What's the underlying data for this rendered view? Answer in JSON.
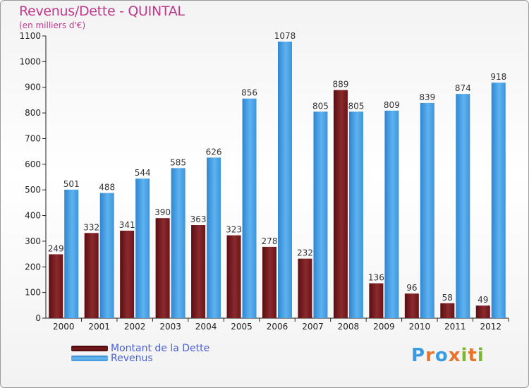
{
  "title": "Revenus/Dette - QUINTAL",
  "subtitle": "(en milliers d'€)",
  "brand": {
    "text": "Proxiti",
    "letters": [
      {
        "ch": "P",
        "color": "#3a9be0"
      },
      {
        "ch": "r",
        "color": "#e8732a"
      },
      {
        "ch": "o",
        "color": "#3a9be0"
      },
      {
        "ch": "x",
        "color": "#e8732a"
      },
      {
        "ch": "i",
        "color": "#7ab92f"
      },
      {
        "ch": "t",
        "color": "#e8732a"
      },
      {
        "ch": "i",
        "color": "#7ab92f"
      }
    ]
  },
  "chart_data": {
    "type": "bar",
    "title": "Revenus/Dette - QUINTAL",
    "subtitle": "(en milliers d'€)",
    "categories": [
      "2000",
      "2001",
      "2002",
      "2003",
      "2004",
      "2005",
      "2006",
      "2007",
      "2008",
      "2009",
      "2010",
      "2011",
      "2012"
    ],
    "series": [
      {
        "name": "Montant de la Dette",
        "color": "#7a1a1e",
        "values": [
          249,
          332,
          341,
          390,
          363,
          323,
          278,
          232,
          889,
          136,
          96,
          58,
          49
        ]
      },
      {
        "name": "Revenus",
        "color": "#4aa3e8",
        "values": [
          501,
          488,
          544,
          585,
          626,
          856,
          1078,
          805,
          805,
          809,
          839,
          874,
          918
        ]
      }
    ],
    "ylim": [
      0,
      1100
    ],
    "yticks": [
      0,
      100,
      200,
      300,
      400,
      500,
      600,
      700,
      800,
      900,
      1000,
      1100
    ],
    "grid": false,
    "legend": "bottom-left"
  }
}
